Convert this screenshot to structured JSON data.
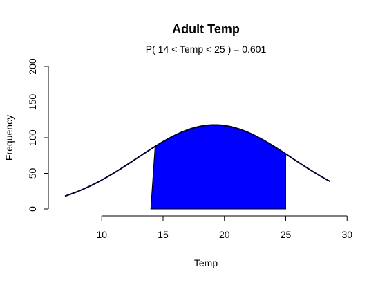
{
  "chart_data": {
    "type": "area",
    "title": "Adult Temp",
    "subtitle": "P( 14 < Temp < 25 ) = 0.601",
    "xlabel": "Temp",
    "ylabel": "Frequency",
    "xlim": [
      6.1,
      31.0
    ],
    "ylim": [
      0,
      200
    ],
    "x_ticks": [
      10,
      15,
      20,
      25,
      30
    ],
    "y_ticks": [
      0,
      50,
      100,
      150,
      200
    ],
    "curve": {
      "x_range": [
        7,
        28.6
      ],
      "mean": 19.2,
      "sd": 6.3,
      "peak": 118,
      "color": "#000033"
    },
    "shaded_region": {
      "x_from": 14,
      "x_to": 25,
      "fill": "#0000ff"
    },
    "grid": false,
    "legend": "none"
  }
}
